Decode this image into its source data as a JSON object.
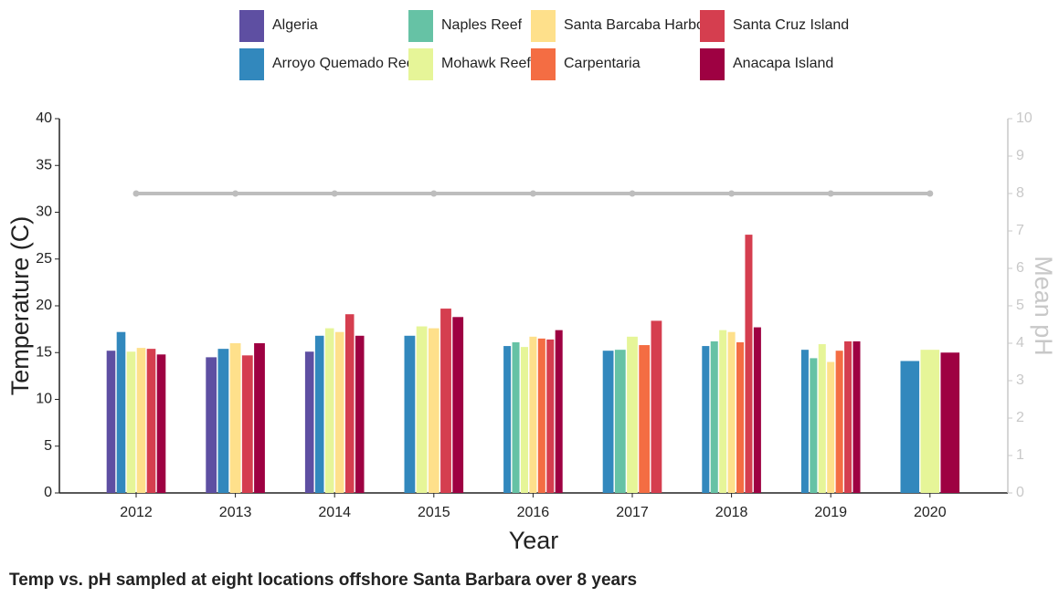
{
  "chart_data": {
    "type": "bar",
    "title": "Temp vs. pH sampled at eight locations offshore Santa Barbara over 8 years",
    "x_label": "Year",
    "y_label": "Temperature (C)",
    "y2_label": "Mean pH",
    "categories": [
      "2012",
      "2013",
      "2014",
      "2015",
      "2016",
      "2017",
      "2018",
      "2019",
      "2020"
    ],
    "series": [
      {
        "name": "Algeria",
        "color": "#5e4fa2",
        "values": [
          15.2,
          14.5,
          15.1,
          null,
          null,
          null,
          null,
          null,
          null
        ]
      },
      {
        "name": "Arroyo Quemado Reef",
        "color": "#3288bd",
        "values": [
          17.2,
          15.4,
          16.8,
          16.8,
          15.7,
          15.2,
          15.7,
          15.3,
          14.1
        ]
      },
      {
        "name": "Naples Reef",
        "color": "#66c2a5",
        "values": [
          null,
          null,
          null,
          null,
          16.1,
          15.3,
          16.2,
          14.4,
          null
        ]
      },
      {
        "name": "Mohawk Reef",
        "color": "#e6f598",
        "values": [
          15.1,
          null,
          17.6,
          17.8,
          15.6,
          16.7,
          17.4,
          15.9,
          15.3
        ]
      },
      {
        "name": "Santa Barcaba Harbor",
        "color": "#fee08b",
        "values": [
          15.5,
          16.0,
          17.2,
          17.6,
          16.7,
          null,
          17.2,
          14.0,
          null
        ]
      },
      {
        "name": "Carpentaria",
        "color": "#f46d43",
        "values": [
          null,
          null,
          null,
          null,
          16.5,
          15.8,
          16.1,
          15.2,
          null
        ]
      },
      {
        "name": "Santa Cruz Island",
        "color": "#d53e4f",
        "values": [
          15.4,
          14.7,
          19.1,
          19.7,
          16.4,
          18.4,
          27.6,
          16.2,
          null
        ]
      },
      {
        "name": "Anacapa Island",
        "color": "#9e0142",
        "values": [
          14.8,
          16.0,
          16.8,
          18.8,
          17.4,
          null,
          17.7,
          16.2,
          15.0
        ]
      }
    ],
    "line_series": {
      "color": "#bdbdbd",
      "axis": "y2",
      "values": [
        8,
        8,
        8,
        8,
        8,
        8,
        8,
        8,
        8
      ]
    },
    "ylim": [
      0,
      40
    ],
    "yticks": [
      0,
      5,
      10,
      15,
      20,
      25,
      30,
      35,
      40
    ],
    "y2lim": [
      0,
      10
    ],
    "y2ticks": [
      0,
      1,
      2,
      3,
      4,
      5,
      6,
      7,
      8,
      9,
      10
    ],
    "y2_color": "#c8c8c8"
  }
}
